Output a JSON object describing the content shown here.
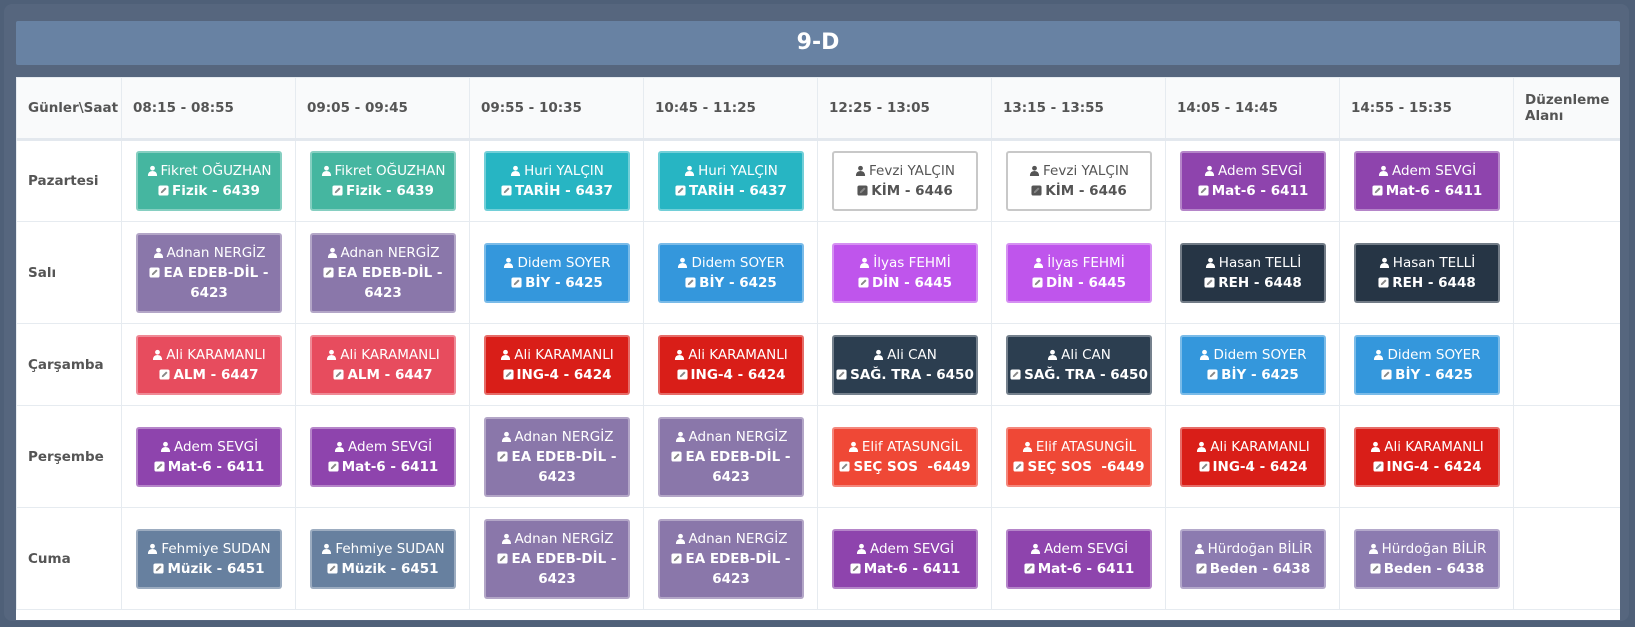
{
  "header": {
    "title": "9-D"
  },
  "table": {
    "columns": [
      "Günler\\Saat",
      "08:15 - 08:55",
      "09:05 - 09:45",
      "09:55 - 10:35",
      "10:45 - 11:25",
      "12:25 - 13:05",
      "13:15 - 13:55",
      "14:05 - 14:45",
      "14:55 - 15:35",
      "Düzenleme Alanı"
    ],
    "rows": [
      {
        "day": "Pazartesi",
        "lessons": [
          {
            "teacher": "Fikret OĞUZHAN",
            "course": "Fizik - 6439",
            "color": "#45b6a0"
          },
          {
            "teacher": "Fikret OĞUZHAN",
            "course": "Fizik - 6439",
            "color": "#45b6a0"
          },
          {
            "teacher": "Huri YALÇIN",
            "course": "TARİH - 6437",
            "color": "#27b5c3"
          },
          {
            "teacher": "Huri YALÇIN",
            "course": "TARİH - 6437",
            "color": "#27b5c3"
          },
          {
            "teacher": "Fevzi YALÇIN",
            "course": "KİM - 6446",
            "color": "#ffffff"
          },
          {
            "teacher": "Fevzi YALÇIN",
            "course": "KİM - 6446",
            "color": "#ffffff"
          },
          {
            "teacher": "Adem SEVGİ",
            "course": "Mat-6 - 6411",
            "color": "#8e44ad"
          },
          {
            "teacher": "Adem SEVGİ",
            "course": "Mat-6 - 6411",
            "color": "#8e44ad"
          }
        ]
      },
      {
        "day": "Salı",
        "lessons": [
          {
            "teacher": "Adnan NERGİZ",
            "course": "EA EDEB-DİL - 6423",
            "color": "#8a77aa"
          },
          {
            "teacher": "Adnan NERGİZ",
            "course": "EA EDEB-DİL - 6423",
            "color": "#8a77aa"
          },
          {
            "teacher": "Didem SOYER",
            "course": "BİY - 6425",
            "color": "#3497dc"
          },
          {
            "teacher": "Didem SOYER",
            "course": "BİY - 6425",
            "color": "#3497dc"
          },
          {
            "teacher": "İlyas FEHMİ",
            "course": "DİN - 6445",
            "color": "#bf55ec"
          },
          {
            "teacher": "İlyas FEHMİ",
            "course": "DİN - 6445",
            "color": "#bf55ec"
          },
          {
            "teacher": "Hasan TELLİ",
            "course": "REH - 6448",
            "color": "#263545"
          },
          {
            "teacher": "Hasan TELLİ",
            "course": "REH - 6448",
            "color": "#263545"
          }
        ]
      },
      {
        "day": "Çarşamba",
        "lessons": [
          {
            "teacher": "Ali KARAMANLI",
            "course": "ALM - 6447",
            "color": "#e74c5e"
          },
          {
            "teacher": "Ali KARAMANLI",
            "course": "ALM - 6447",
            "color": "#e74c5e"
          },
          {
            "teacher": "Ali KARAMANLI",
            "course": "ING-4 - 6424",
            "color": "#d91e18"
          },
          {
            "teacher": "Ali KARAMANLI",
            "course": "ING-4 - 6424",
            "color": "#d91e18"
          },
          {
            "teacher": "Ali CAN",
            "course": "SAĞ. TRA - 6450",
            "color": "#2c3e50"
          },
          {
            "teacher": "Ali CAN",
            "course": "SAĞ. TRA - 6450",
            "color": "#2c3e50"
          },
          {
            "teacher": "Didem SOYER",
            "course": "BİY - 6425",
            "color": "#3497dc"
          },
          {
            "teacher": "Didem SOYER",
            "course": "BİY - 6425",
            "color": "#3497dc"
          }
        ]
      },
      {
        "day": "Perşembe",
        "lessons": [
          {
            "teacher": "Adem SEVGİ",
            "course": "Mat-6 - 6411",
            "color": "#8e44ad"
          },
          {
            "teacher": "Adem SEVGİ",
            "course": "Mat-6 - 6411",
            "color": "#8e44ad"
          },
          {
            "teacher": "Adnan NERGİZ",
            "course": "EA EDEB-DİL - 6423",
            "color": "#8a77aa"
          },
          {
            "teacher": "Adnan NERGİZ",
            "course": "EA EDEB-DİL - 6423",
            "color": "#8a77aa"
          },
          {
            "teacher": "Elif ATASUNGİL",
            "course": "SEÇ SOS  -6449",
            "color": "#ef4836"
          },
          {
            "teacher": "Elif ATASUNGİL",
            "course": "SEÇ SOS  -6449",
            "color": "#ef4836"
          },
          {
            "teacher": "Ali KARAMANLI",
            "course": "ING-4 - 6424",
            "color": "#d91e18"
          },
          {
            "teacher": "Ali KARAMANLI",
            "course": "ING-4 - 6424",
            "color": "#d91e18"
          }
        ]
      },
      {
        "day": "Cuma",
        "lessons": [
          {
            "teacher": "Fehmiye SUDAN",
            "course": "Müzik - 6451",
            "color": "#67809f"
          },
          {
            "teacher": "Fehmiye SUDAN",
            "course": "Müzik - 6451",
            "color": "#67809f"
          },
          {
            "teacher": "Adnan NERGİZ",
            "course": "EA EDEB-DİL - 6423",
            "color": "#8a77aa"
          },
          {
            "teacher": "Adnan NERGİZ",
            "course": "EA EDEB-DİL - 6423",
            "color": "#8a77aa"
          },
          {
            "teacher": "Adem SEVGİ",
            "course": "Mat-6 - 6411",
            "color": "#8e44ad"
          },
          {
            "teacher": "Adem SEVGİ",
            "course": "Mat-6 - 6411",
            "color": "#8e44ad"
          },
          {
            "teacher": "Hürdoğan BİLİR",
            "course": "Beden - 6438",
            "color": "#8c7bb0"
          },
          {
            "teacher": "Hürdoğan BİLİR",
            "course": "Beden - 6438",
            "color": "#8c7bb0"
          }
        ]
      }
    ]
  }
}
